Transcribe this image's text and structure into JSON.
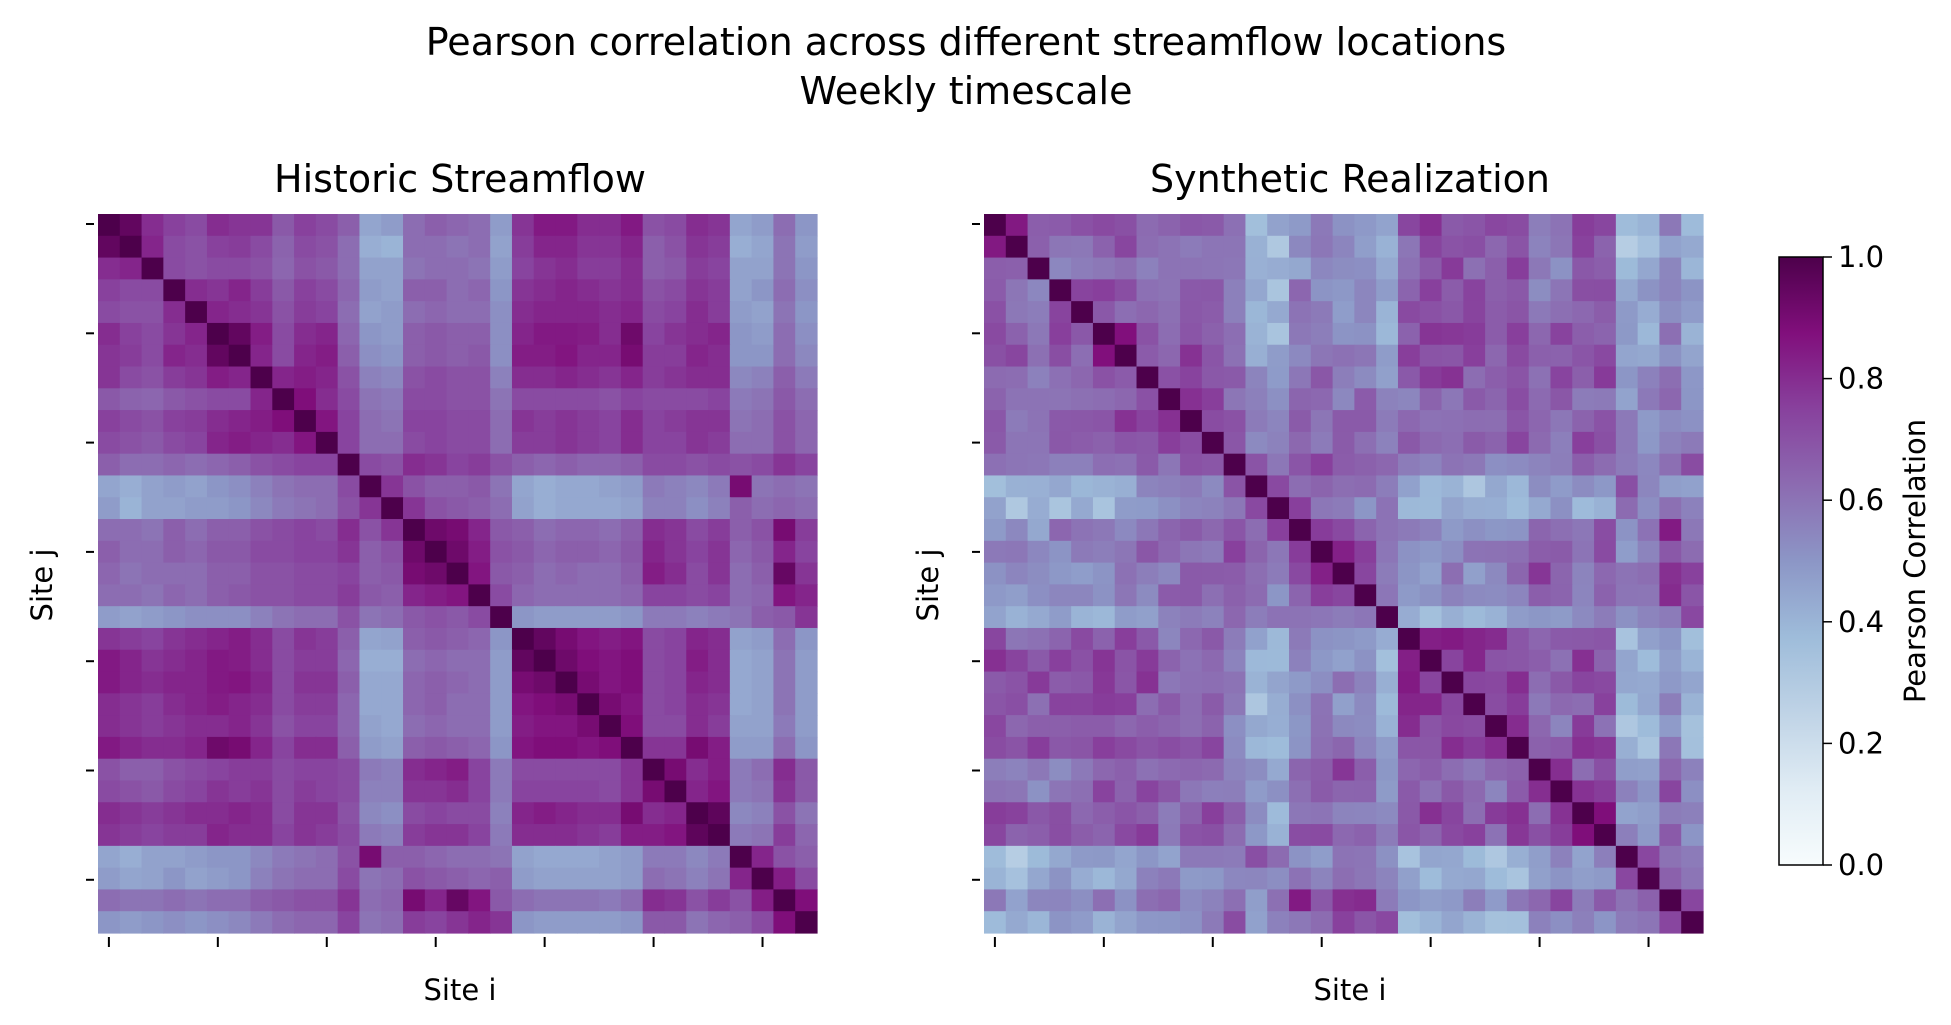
{
  "figure": {
    "title_line1": "Pearson correlation across different streamflow locations",
    "title_line2": "Weekly timescale"
  },
  "colormap": {
    "name": "BuPu",
    "stops": [
      [
        0.0,
        "#f7fcfd"
      ],
      [
        0.125,
        "#e0ecf4"
      ],
      [
        0.25,
        "#bfd3e6"
      ],
      [
        0.375,
        "#9ebcda"
      ],
      [
        0.5,
        "#8c96c6"
      ],
      [
        0.625,
        "#8c6bb1"
      ],
      [
        0.75,
        "#88419d"
      ],
      [
        0.875,
        "#810f7c"
      ],
      [
        1.0,
        "#4d004b"
      ]
    ]
  },
  "colorbar": {
    "label": "Pearson Correlation",
    "range": [
      0,
      1
    ],
    "ticks": [
      "0.0",
      "0.2",
      "0.4",
      "0.6",
      "0.8",
      "1.0"
    ]
  },
  "chart_data": [
    {
      "type": "heatmap",
      "title": "Historic Streamflow",
      "xlabel": "Site i",
      "ylabel": "Site j",
      "n_sites": 33,
      "value_range": [
        0,
        1
      ],
      "diagonal": 1.0,
      "matrix": [
        [
          1.0,
          0.95,
          0.8,
          0.75,
          0.72,
          0.8,
          0.78,
          0.78,
          0.68,
          0.75,
          0.72,
          0.66,
          0.45,
          0.48,
          0.62,
          0.66,
          0.64,
          0.62,
          0.48,
          0.78,
          0.85,
          0.85,
          0.8,
          0.8,
          0.85,
          0.7,
          0.72,
          0.8,
          0.78,
          0.45,
          0.48,
          0.62,
          0.5
        ],
        [
          0.95,
          1.0,
          0.82,
          0.72,
          0.7,
          0.75,
          0.76,
          0.72,
          0.65,
          0.72,
          0.7,
          0.62,
          0.42,
          0.4,
          0.62,
          0.62,
          0.6,
          0.62,
          0.46,
          0.76,
          0.82,
          0.82,
          0.78,
          0.78,
          0.82,
          0.66,
          0.7,
          0.78,
          0.76,
          0.42,
          0.45,
          0.6,
          0.48
        ],
        [
          0.8,
          0.82,
          1.0,
          0.72,
          0.7,
          0.72,
          0.72,
          0.7,
          0.64,
          0.7,
          0.68,
          0.62,
          0.46,
          0.46,
          0.6,
          0.62,
          0.62,
          0.6,
          0.48,
          0.74,
          0.78,
          0.8,
          0.76,
          0.76,
          0.8,
          0.66,
          0.68,
          0.76,
          0.74,
          0.46,
          0.46,
          0.6,
          0.5
        ],
        [
          0.75,
          0.72,
          0.72,
          1.0,
          0.8,
          0.78,
          0.82,
          0.76,
          0.68,
          0.75,
          0.72,
          0.64,
          0.48,
          0.46,
          0.66,
          0.66,
          0.62,
          0.64,
          0.5,
          0.78,
          0.8,
          0.82,
          0.8,
          0.78,
          0.8,
          0.7,
          0.72,
          0.78,
          0.76,
          0.46,
          0.5,
          0.62,
          0.52
        ],
        [
          0.72,
          0.7,
          0.7,
          0.8,
          1.0,
          0.82,
          0.8,
          0.78,
          0.7,
          0.76,
          0.74,
          0.62,
          0.46,
          0.48,
          0.62,
          0.64,
          0.62,
          0.62,
          0.52,
          0.8,
          0.82,
          0.82,
          0.82,
          0.8,
          0.82,
          0.72,
          0.74,
          0.8,
          0.76,
          0.48,
          0.46,
          0.6,
          0.5
        ],
        [
          0.8,
          0.75,
          0.72,
          0.78,
          0.82,
          1.0,
          0.95,
          0.84,
          0.72,
          0.8,
          0.82,
          0.64,
          0.5,
          0.48,
          0.66,
          0.68,
          0.66,
          0.66,
          0.52,
          0.82,
          0.85,
          0.85,
          0.84,
          0.8,
          0.92,
          0.74,
          0.78,
          0.8,
          0.82,
          0.5,
          0.48,
          0.62,
          0.52
        ],
        [
          0.78,
          0.76,
          0.72,
          0.82,
          0.8,
          0.95,
          1.0,
          0.82,
          0.72,
          0.82,
          0.84,
          0.66,
          0.52,
          0.5,
          0.66,
          0.68,
          0.66,
          0.68,
          0.52,
          0.84,
          0.84,
          0.86,
          0.82,
          0.82,
          0.9,
          0.76,
          0.76,
          0.82,
          0.8,
          0.5,
          0.5,
          0.62,
          0.54
        ],
        [
          0.78,
          0.72,
          0.7,
          0.76,
          0.78,
          0.84,
          0.82,
          1.0,
          0.82,
          0.84,
          0.82,
          0.7,
          0.56,
          0.54,
          0.7,
          0.72,
          0.7,
          0.7,
          0.56,
          0.8,
          0.8,
          0.82,
          0.8,
          0.78,
          0.82,
          0.76,
          0.78,
          0.8,
          0.8,
          0.54,
          0.56,
          0.66,
          0.58
        ],
        [
          0.68,
          0.65,
          0.64,
          0.68,
          0.7,
          0.72,
          0.72,
          0.82,
          1.0,
          0.88,
          0.8,
          0.72,
          0.6,
          0.58,
          0.72,
          0.72,
          0.7,
          0.7,
          0.6,
          0.72,
          0.72,
          0.72,
          0.72,
          0.7,
          0.74,
          0.72,
          0.72,
          0.72,
          0.74,
          0.58,
          0.6,
          0.68,
          0.62
        ],
        [
          0.75,
          0.72,
          0.7,
          0.75,
          0.76,
          0.8,
          0.82,
          0.84,
          0.88,
          1.0,
          0.86,
          0.74,
          0.62,
          0.6,
          0.74,
          0.74,
          0.72,
          0.72,
          0.62,
          0.78,
          0.76,
          0.78,
          0.76,
          0.74,
          0.8,
          0.74,
          0.76,
          0.78,
          0.78,
          0.6,
          0.62,
          0.7,
          0.64
        ],
        [
          0.72,
          0.7,
          0.68,
          0.72,
          0.74,
          0.82,
          0.84,
          0.82,
          0.8,
          0.86,
          1.0,
          0.74,
          0.62,
          0.62,
          0.72,
          0.74,
          0.72,
          0.72,
          0.62,
          0.76,
          0.76,
          0.78,
          0.76,
          0.74,
          0.8,
          0.74,
          0.74,
          0.78,
          0.76,
          0.62,
          0.62,
          0.7,
          0.64
        ],
        [
          0.66,
          0.62,
          0.62,
          0.64,
          0.62,
          0.64,
          0.66,
          0.7,
          0.72,
          0.74,
          0.74,
          1.0,
          0.72,
          0.7,
          0.8,
          0.78,
          0.74,
          0.76,
          0.7,
          0.66,
          0.64,
          0.66,
          0.64,
          0.64,
          0.66,
          0.72,
          0.72,
          0.7,
          0.72,
          0.7,
          0.72,
          0.78,
          0.74
        ],
        [
          0.45,
          0.42,
          0.46,
          0.48,
          0.46,
          0.5,
          0.52,
          0.56,
          0.6,
          0.62,
          0.62,
          0.72,
          1.0,
          0.78,
          0.7,
          0.66,
          0.66,
          0.68,
          0.6,
          0.45,
          0.42,
          0.44,
          0.44,
          0.46,
          0.48,
          0.58,
          0.56,
          0.54,
          0.58,
          0.9,
          0.6,
          0.62,
          0.6
        ],
        [
          0.48,
          0.4,
          0.46,
          0.46,
          0.48,
          0.48,
          0.5,
          0.54,
          0.58,
          0.6,
          0.62,
          0.7,
          0.78,
          1.0,
          0.78,
          0.7,
          0.68,
          0.66,
          0.62,
          0.46,
          0.42,
          0.44,
          0.44,
          0.44,
          0.46,
          0.56,
          0.56,
          0.52,
          0.56,
          0.66,
          0.62,
          0.64,
          0.62
        ],
        [
          0.62,
          0.62,
          0.6,
          0.66,
          0.62,
          0.66,
          0.66,
          0.7,
          0.72,
          0.74,
          0.72,
          0.8,
          0.7,
          0.78,
          1.0,
          0.92,
          0.9,
          0.82,
          0.68,
          0.66,
          0.62,
          0.64,
          0.64,
          0.62,
          0.66,
          0.8,
          0.78,
          0.72,
          0.76,
          0.66,
          0.7,
          0.9,
          0.76
        ],
        [
          0.66,
          0.62,
          0.62,
          0.66,
          0.64,
          0.68,
          0.68,
          0.72,
          0.72,
          0.74,
          0.74,
          0.78,
          0.66,
          0.7,
          0.92,
          1.0,
          0.92,
          0.84,
          0.7,
          0.68,
          0.64,
          0.66,
          0.66,
          0.64,
          0.68,
          0.82,
          0.78,
          0.74,
          0.78,
          0.64,
          0.68,
          0.82,
          0.74
        ],
        [
          0.64,
          0.6,
          0.62,
          0.62,
          0.62,
          0.66,
          0.66,
          0.7,
          0.7,
          0.72,
          0.72,
          0.74,
          0.66,
          0.68,
          0.9,
          0.92,
          1.0,
          0.86,
          0.68,
          0.66,
          0.62,
          0.64,
          0.62,
          0.62,
          0.66,
          0.84,
          0.8,
          0.72,
          0.78,
          0.62,
          0.66,
          0.94,
          0.78
        ],
        [
          0.62,
          0.62,
          0.6,
          0.64,
          0.62,
          0.66,
          0.68,
          0.7,
          0.7,
          0.72,
          0.72,
          0.76,
          0.68,
          0.66,
          0.82,
          0.84,
          0.86,
          1.0,
          0.72,
          0.64,
          0.62,
          0.62,
          0.62,
          0.62,
          0.64,
          0.74,
          0.74,
          0.72,
          0.74,
          0.62,
          0.64,
          0.86,
          0.82
        ],
        [
          0.48,
          0.46,
          0.48,
          0.5,
          0.52,
          0.52,
          0.52,
          0.56,
          0.6,
          0.62,
          0.62,
          0.7,
          0.6,
          0.62,
          0.68,
          0.7,
          0.68,
          0.72,
          1.0,
          0.5,
          0.48,
          0.48,
          0.48,
          0.48,
          0.5,
          0.58,
          0.58,
          0.56,
          0.58,
          0.6,
          0.66,
          0.68,
          0.78
        ],
        [
          0.78,
          0.76,
          0.74,
          0.78,
          0.8,
          0.82,
          0.84,
          0.8,
          0.72,
          0.78,
          0.76,
          0.66,
          0.45,
          0.46,
          0.66,
          0.68,
          0.66,
          0.64,
          0.5,
          1.0,
          0.95,
          0.9,
          0.86,
          0.84,
          0.86,
          0.72,
          0.74,
          0.82,
          0.8,
          0.46,
          0.48,
          0.62,
          0.5
        ],
        [
          0.85,
          0.82,
          0.78,
          0.8,
          0.82,
          0.85,
          0.84,
          0.8,
          0.72,
          0.76,
          0.76,
          0.64,
          0.42,
          0.42,
          0.62,
          0.64,
          0.62,
          0.62,
          0.48,
          0.95,
          1.0,
          0.92,
          0.88,
          0.86,
          0.88,
          0.72,
          0.74,
          0.84,
          0.8,
          0.44,
          0.46,
          0.6,
          0.48
        ],
        [
          0.85,
          0.82,
          0.8,
          0.82,
          0.82,
          0.85,
          0.86,
          0.82,
          0.72,
          0.78,
          0.78,
          0.66,
          0.44,
          0.44,
          0.64,
          0.66,
          0.64,
          0.62,
          0.48,
          0.9,
          0.92,
          1.0,
          0.9,
          0.86,
          0.88,
          0.72,
          0.74,
          0.82,
          0.8,
          0.44,
          0.46,
          0.6,
          0.48
        ],
        [
          0.8,
          0.78,
          0.76,
          0.8,
          0.82,
          0.84,
          0.82,
          0.8,
          0.72,
          0.76,
          0.76,
          0.64,
          0.44,
          0.44,
          0.64,
          0.66,
          0.62,
          0.62,
          0.48,
          0.86,
          0.88,
          0.9,
          1.0,
          0.9,
          0.86,
          0.72,
          0.74,
          0.8,
          0.78,
          0.44,
          0.46,
          0.6,
          0.48
        ],
        [
          0.8,
          0.78,
          0.76,
          0.78,
          0.8,
          0.8,
          0.82,
          0.78,
          0.7,
          0.74,
          0.74,
          0.64,
          0.46,
          0.44,
          0.62,
          0.64,
          0.62,
          0.62,
          0.48,
          0.84,
          0.86,
          0.86,
          0.9,
          1.0,
          0.88,
          0.72,
          0.72,
          0.8,
          0.76,
          0.46,
          0.46,
          0.58,
          0.48
        ],
        [
          0.85,
          0.82,
          0.8,
          0.8,
          0.82,
          0.92,
          0.9,
          0.82,
          0.74,
          0.8,
          0.8,
          0.66,
          0.48,
          0.46,
          0.66,
          0.68,
          0.66,
          0.64,
          0.5,
          0.86,
          0.88,
          0.88,
          0.86,
          0.88,
          1.0,
          0.78,
          0.78,
          0.9,
          0.84,
          0.48,
          0.48,
          0.62,
          0.5
        ],
        [
          0.7,
          0.66,
          0.66,
          0.7,
          0.72,
          0.74,
          0.76,
          0.76,
          0.72,
          0.74,
          0.74,
          0.72,
          0.58,
          0.56,
          0.8,
          0.82,
          0.84,
          0.74,
          0.58,
          0.72,
          0.72,
          0.72,
          0.72,
          0.72,
          0.78,
          1.0,
          0.9,
          0.8,
          0.84,
          0.58,
          0.62,
          0.8,
          0.68
        ],
        [
          0.72,
          0.7,
          0.68,
          0.72,
          0.74,
          0.78,
          0.76,
          0.78,
          0.72,
          0.76,
          0.74,
          0.72,
          0.56,
          0.56,
          0.78,
          0.78,
          0.8,
          0.74,
          0.58,
          0.74,
          0.74,
          0.74,
          0.74,
          0.72,
          0.78,
          0.9,
          1.0,
          0.82,
          0.86,
          0.58,
          0.6,
          0.78,
          0.68
        ],
        [
          0.8,
          0.78,
          0.76,
          0.78,
          0.8,
          0.8,
          0.82,
          0.8,
          0.72,
          0.78,
          0.78,
          0.7,
          0.54,
          0.52,
          0.72,
          0.74,
          0.72,
          0.72,
          0.56,
          0.82,
          0.84,
          0.82,
          0.8,
          0.8,
          0.9,
          0.8,
          0.82,
          1.0,
          0.96,
          0.54,
          0.56,
          0.7,
          0.6
        ],
        [
          0.78,
          0.76,
          0.74,
          0.76,
          0.76,
          0.82,
          0.8,
          0.8,
          0.74,
          0.78,
          0.76,
          0.72,
          0.58,
          0.56,
          0.76,
          0.78,
          0.78,
          0.74,
          0.58,
          0.8,
          0.8,
          0.8,
          0.78,
          0.76,
          0.84,
          0.84,
          0.86,
          0.96,
          1.0,
          0.58,
          0.6,
          0.76,
          0.64
        ],
        [
          0.45,
          0.42,
          0.46,
          0.46,
          0.48,
          0.5,
          0.5,
          0.54,
          0.58,
          0.6,
          0.62,
          0.7,
          0.9,
          0.66,
          0.66,
          0.64,
          0.62,
          0.62,
          0.6,
          0.46,
          0.44,
          0.44,
          0.44,
          0.46,
          0.48,
          0.58,
          0.58,
          0.54,
          0.58,
          1.0,
          0.82,
          0.7,
          0.66
        ],
        [
          0.48,
          0.45,
          0.46,
          0.5,
          0.46,
          0.48,
          0.5,
          0.56,
          0.6,
          0.62,
          0.62,
          0.72,
          0.6,
          0.62,
          0.7,
          0.68,
          0.66,
          0.64,
          0.66,
          0.48,
          0.46,
          0.46,
          0.46,
          0.46,
          0.48,
          0.62,
          0.6,
          0.56,
          0.6,
          0.82,
          1.0,
          0.84,
          0.72
        ],
        [
          0.62,
          0.6,
          0.6,
          0.62,
          0.6,
          0.62,
          0.62,
          0.66,
          0.68,
          0.7,
          0.7,
          0.78,
          0.62,
          0.64,
          0.9,
          0.82,
          0.94,
          0.86,
          0.68,
          0.62,
          0.6,
          0.6,
          0.6,
          0.58,
          0.62,
          0.8,
          0.78,
          0.7,
          0.76,
          0.7,
          0.84,
          1.0,
          0.88
        ],
        [
          0.5,
          0.48,
          0.5,
          0.52,
          0.5,
          0.52,
          0.54,
          0.58,
          0.62,
          0.64,
          0.64,
          0.74,
          0.6,
          0.62,
          0.76,
          0.74,
          0.78,
          0.82,
          0.78,
          0.5,
          0.48,
          0.48,
          0.48,
          0.48,
          0.5,
          0.68,
          0.68,
          0.6,
          0.64,
          0.66,
          0.72,
          0.88,
          1.0
        ]
      ]
    },
    {
      "type": "heatmap",
      "title": "Synthetic Realization",
      "xlabel": "Site i",
      "ylabel": "Site j",
      "n_sites": 33,
      "value_range": [
        0,
        1
      ],
      "diagonal": 1.0,
      "variation": "similar block structure to historic with weaker off-diagonal correlations"
    }
  ]
}
